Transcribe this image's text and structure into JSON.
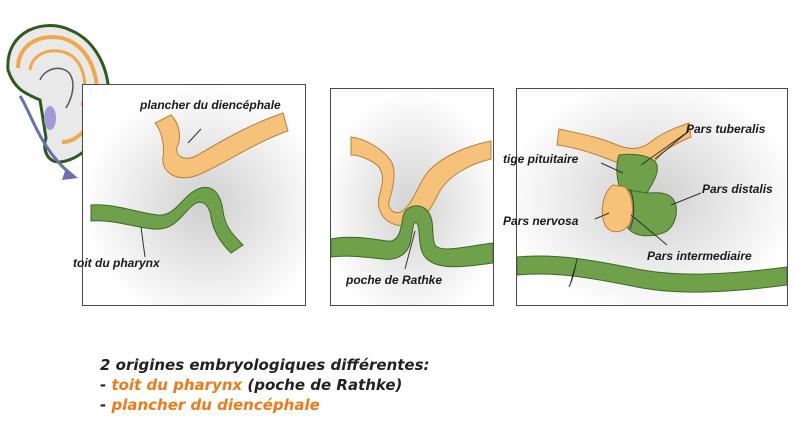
{
  "labels": {
    "plancher_diencephale": "plancher du diencéphale",
    "toit_pharynx": "toit du pharynx",
    "poche_rathke": "poche de Rathke",
    "tige_pituitaire": "tige pituitaire",
    "pars_tuberalis": "Pars tuberalis",
    "pars_distalis": "Pars distalis",
    "pars_nervosa": "Pars nervosa",
    "pars_intermediaire": "Pars intermediaire"
  },
  "caption": {
    "heading": "2 origines embryologiques différentes:",
    "line1_dash": "- ",
    "line1_highlight": "toit du pharynx",
    "line1_rest": " (poche de Rathke)",
    "line2_dash": "- ",
    "line2_highlight": "plancher du diencéphale"
  },
  "colors": {
    "orange_tissue": "#f6c27a",
    "green_tissue": "#6fa04a",
    "highlight_text": "#f07a18",
    "arrow": "#6a6fb0"
  }
}
